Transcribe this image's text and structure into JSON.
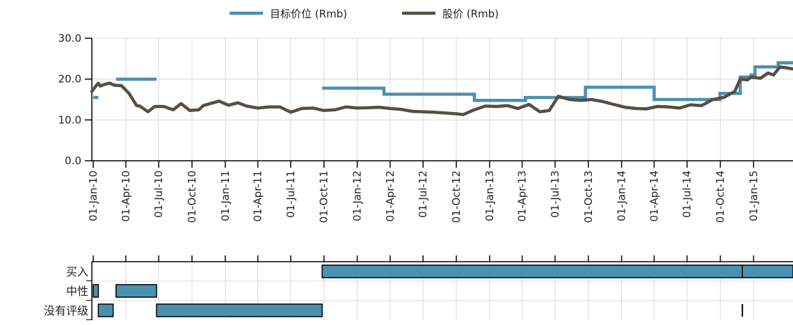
{
  "chart_data": {
    "type": "line",
    "legend": [
      {
        "name": "目标价位 (Rmb)",
        "color": "#4a90b0"
      },
      {
        "name": "股价 (Rmb)",
        "color": "#574e45"
      }
    ],
    "legend_position": "top-center",
    "grid": true,
    "ylim": [
      0,
      30
    ],
    "yticks": [
      "0.0",
      "10.0",
      "20.0",
      "30.0"
    ],
    "x_range": [
      "2009-12-28",
      "2015-04-20"
    ],
    "x_ticks": [
      {
        "date": "2010-01-01",
        "label": "01-Jan-10"
      },
      {
        "date": "2010-04-01",
        "label": "01-Apr-10"
      },
      {
        "date": "2010-07-01",
        "label": "01-Jul-10"
      },
      {
        "date": "2010-10-01",
        "label": "01-Oct-10"
      },
      {
        "date": "2011-01-01",
        "label": "01-Jan-11"
      },
      {
        "date": "2011-04-01",
        "label": "01-Apr-11"
      },
      {
        "date": "2011-07-01",
        "label": "01-Jul-11"
      },
      {
        "date": "2011-10-01",
        "label": "01-Oct-11"
      },
      {
        "date": "2012-01-01",
        "label": "01-Jan-12"
      },
      {
        "date": "2012-04-01",
        "label": "01-Apr-12"
      },
      {
        "date": "2012-07-01",
        "label": "01-Jul-12"
      },
      {
        "date": "2012-10-01",
        "label": "01-Oct-12"
      },
      {
        "date": "2013-01-01",
        "label": "01-Jan-13"
      },
      {
        "date": "2013-04-01",
        "label": "01-Apr-13"
      },
      {
        "date": "2013-07-01",
        "label": "01-Jul-13"
      },
      {
        "date": "2013-10-01",
        "label": "01-Oct-13"
      },
      {
        "date": "2014-01-01",
        "label": "01-Jan-14"
      },
      {
        "date": "2014-04-01",
        "label": "01-Apr-14"
      },
      {
        "date": "2014-07-01",
        "label": "01-Jul-14"
      },
      {
        "date": "2014-10-01",
        "label": "01-Oct-14"
      },
      {
        "date": "2015-01-01",
        "label": "01-Jan-15"
      }
    ],
    "series": [
      {
        "name": "目标价位 (Rmb)",
        "color": "#4a90b0",
        "segments": [
          [
            [
              "2010-01-01",
              15.5
            ],
            [
              "2010-01-15",
              15.5
            ]
          ],
          [
            [
              "2010-03-05",
              20.0
            ],
            [
              "2010-06-25",
              20.0
            ]
          ],
          [
            [
              "2011-09-26",
              17.8
            ],
            [
              "2012-03-15",
              17.8
            ],
            [
              "2012-03-15",
              16.3
            ],
            [
              "2012-11-20",
              16.3
            ],
            [
              "2012-11-20",
              14.8
            ],
            [
              "2013-04-10",
              14.8
            ],
            [
              "2013-04-10",
              15.5
            ],
            [
              "2013-09-23",
              15.5
            ],
            [
              "2013-09-23",
              18.0
            ],
            [
              "2014-04-01",
              18.0
            ],
            [
              "2014-04-01",
              15.0
            ],
            [
              "2014-09-30",
              15.0
            ],
            [
              "2014-09-30",
              16.5
            ],
            [
              "2014-11-25",
              16.5
            ],
            [
              "2014-11-25",
              20.5
            ],
            [
              "2014-12-25",
              20.5
            ],
            [
              "2014-12-25",
              21.0
            ],
            [
              "2015-01-05",
              21.0
            ],
            [
              "2015-01-05",
              23.0
            ],
            [
              "2015-03-10",
              23.0
            ],
            [
              "2015-03-10",
              24.0
            ],
            [
              "2015-04-20",
              24.0
            ]
          ]
        ]
      },
      {
        "name": "股价 (Rmb)",
        "color": "#574e45",
        "values": [
          [
            "2009-12-28",
            17.0
          ],
          [
            "2010-01-10",
            18.5
          ],
          [
            "2010-01-15",
            19.0
          ],
          [
            "2010-01-20",
            18.3
          ],
          [
            "2010-02-01",
            18.7
          ],
          [
            "2010-02-15",
            19.0
          ],
          [
            "2010-03-01",
            18.5
          ],
          [
            "2010-03-20",
            18.4
          ],
          [
            "2010-04-10",
            16.5
          ],
          [
            "2010-05-01",
            13.5
          ],
          [
            "2010-05-10",
            13.4
          ],
          [
            "2010-06-01",
            12.0
          ],
          [
            "2010-06-20",
            13.3
          ],
          [
            "2010-07-15",
            13.3
          ],
          [
            "2010-08-10",
            12.5
          ],
          [
            "2010-09-01",
            14.0
          ],
          [
            "2010-09-25",
            12.3
          ],
          [
            "2010-10-20",
            12.5
          ],
          [
            "2010-11-01",
            13.5
          ],
          [
            "2010-11-20",
            14.0
          ],
          [
            "2010-12-15",
            14.6
          ],
          [
            "2011-01-10",
            13.6
          ],
          [
            "2011-02-05",
            14.2
          ],
          [
            "2011-03-01",
            13.4
          ],
          [
            "2011-04-01",
            12.9
          ],
          [
            "2011-05-01",
            13.2
          ],
          [
            "2011-06-01",
            13.2
          ],
          [
            "2011-07-01",
            11.9
          ],
          [
            "2011-08-01",
            12.8
          ],
          [
            "2011-09-01",
            12.9
          ],
          [
            "2011-10-01",
            12.3
          ],
          [
            "2011-11-01",
            12.5
          ],
          [
            "2011-12-01",
            13.2
          ],
          [
            "2012-01-01",
            12.9
          ],
          [
            "2012-02-01",
            13.0
          ],
          [
            "2012-03-01",
            13.1
          ],
          [
            "2012-04-01",
            12.8
          ],
          [
            "2012-05-01",
            12.6
          ],
          [
            "2012-06-01",
            12.1
          ],
          [
            "2012-07-01",
            12.0
          ],
          [
            "2012-08-01",
            11.9
          ],
          [
            "2012-09-01",
            11.7
          ],
          [
            "2012-10-01",
            11.5
          ],
          [
            "2012-10-20",
            11.3
          ],
          [
            "2012-11-20",
            12.5
          ],
          [
            "2012-12-20",
            13.4
          ],
          [
            "2013-01-20",
            13.3
          ],
          [
            "2013-02-20",
            13.5
          ],
          [
            "2013-03-20",
            12.8
          ],
          [
            "2013-04-20",
            13.8
          ],
          [
            "2013-05-20",
            12.0
          ],
          [
            "2013-06-15",
            12.3
          ],
          [
            "2013-07-10",
            15.8
          ],
          [
            "2013-08-10",
            15.0
          ],
          [
            "2013-09-10",
            14.8
          ],
          [
            "2013-10-10",
            15.0
          ],
          [
            "2013-11-10",
            14.5
          ],
          [
            "2013-12-10",
            13.8
          ],
          [
            "2014-01-10",
            13.1
          ],
          [
            "2014-02-10",
            12.8
          ],
          [
            "2014-03-10",
            12.7
          ],
          [
            "2014-04-10",
            13.3
          ],
          [
            "2014-05-10",
            13.2
          ],
          [
            "2014-06-10",
            12.9
          ],
          [
            "2014-07-10",
            13.7
          ],
          [
            "2014-08-10",
            13.5
          ],
          [
            "2014-09-10",
            15.0
          ],
          [
            "2014-10-10",
            15.5
          ],
          [
            "2014-11-10",
            17.0
          ],
          [
            "2014-11-25",
            20.0
          ],
          [
            "2014-12-15",
            19.8
          ],
          [
            "2014-12-25",
            20.5
          ],
          [
            "2015-01-20",
            20.2
          ],
          [
            "2015-02-10",
            21.5
          ],
          [
            "2015-02-25",
            21.0
          ],
          [
            "2015-03-15",
            23.0
          ],
          [
            "2015-04-20",
            22.5
          ]
        ]
      }
    ],
    "ratings": {
      "color": "#4a90b0",
      "rows": [
        {
          "label": "买入",
          "bars": [
            [
              "2011-09-26",
              "2014-12-01"
            ],
            [
              "2014-12-01",
              "2015-04-20"
            ]
          ]
        },
        {
          "label": "中性",
          "bars": [
            [
              "2010-01-01",
              "2010-01-15"
            ],
            [
              "2010-03-05",
              "2010-06-25"
            ]
          ]
        },
        {
          "label": "没有评级",
          "bars": [
            [
              "2010-01-15",
              "2010-02-25"
            ],
            [
              "2010-06-25",
              "2011-09-26"
            ]
          ]
        }
      ],
      "markers": [
        {
          "row": "没有评级",
          "date": "2014-12-01"
        }
      ]
    }
  }
}
